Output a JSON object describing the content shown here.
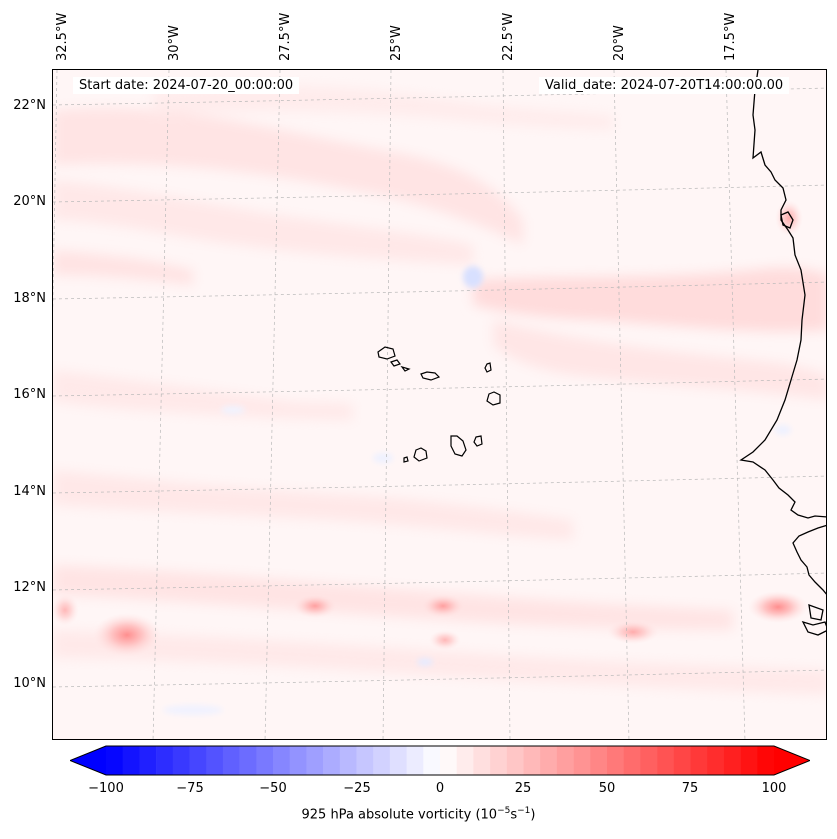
{
  "header": {
    "start_date": "Start date: 2024-07-20_00:00:00",
    "valid_date": "Valid_date: 2024-07-20T14:00:00.00"
  },
  "map": {
    "lon_labels": [
      "32.5°W",
      "30°W",
      "27.5°W",
      "25°W",
      "22.5°W",
      "20°W",
      "17.5°W"
    ],
    "lat_labels": [
      "22°N",
      "20°N",
      "18°N",
      "16°N",
      "14°N",
      "12°N",
      "10°N"
    ],
    "colors": {
      "coast": "#000000",
      "gridline": "#b0b0b0",
      "neg_max": "#0000ff",
      "pos_max": "#ff0000",
      "background": "#fff5f5"
    }
  },
  "colorbar": {
    "ticks": [
      "−100",
      "−75",
      "−50",
      "−25",
      "0",
      "25",
      "50",
      "75",
      "100"
    ],
    "label_main": "925 hPa absolute vorticity (10",
    "label_exp1": "−5",
    "label_mid": "s",
    "label_exp2": "−1",
    "label_end": ")",
    "range": [
      -100,
      100
    ],
    "extend": "both"
  }
}
